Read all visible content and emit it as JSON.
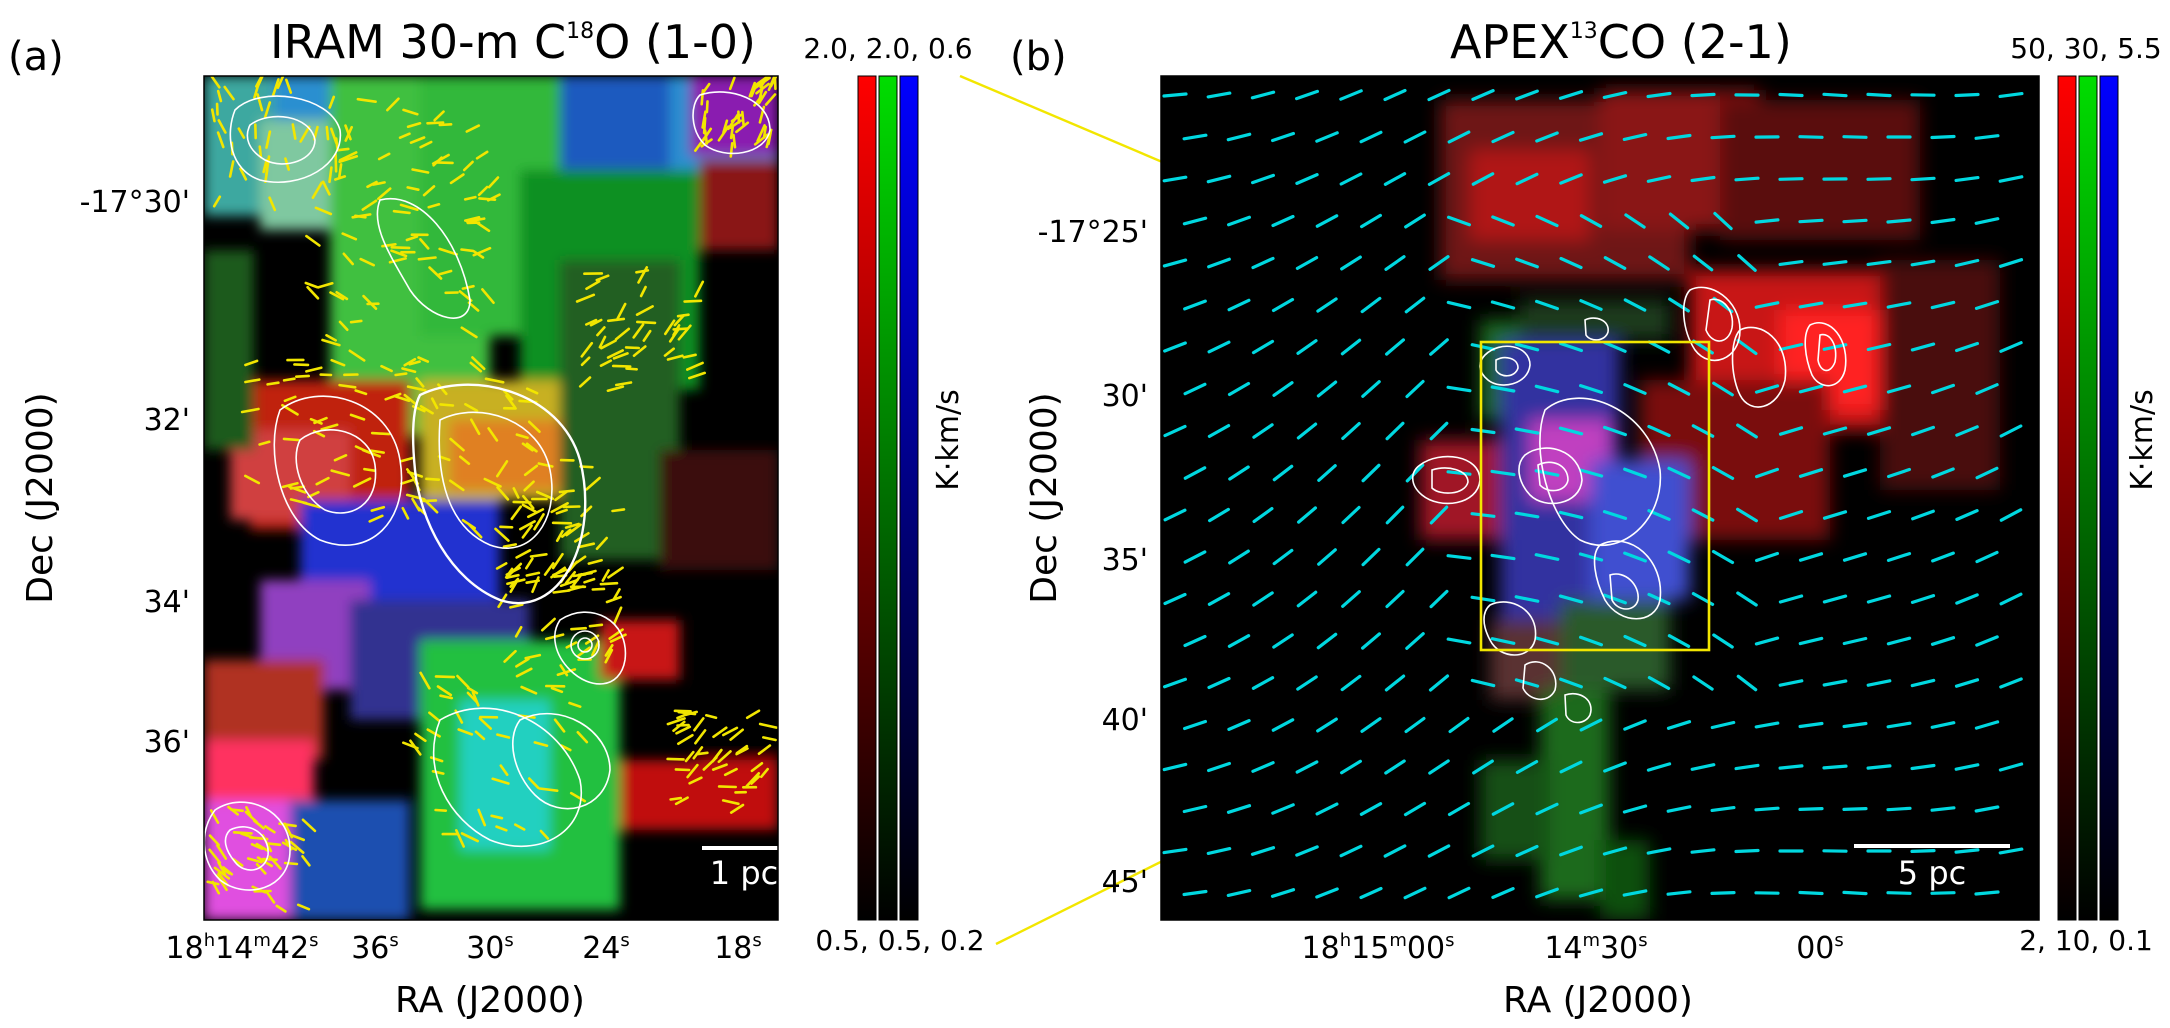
{
  "figure": {
    "panels": [
      {
        "id": "a",
        "label": "(a)",
        "title_main": "IRAM 30-m C",
        "title_sup": "18",
        "title_tail": "O (1-0)",
        "y_axis_label": "Dec (J2000)",
        "x_axis_label": "RA (J2000)",
        "y_ticks": [
          "-17°30'",
          "32'",
          "34'",
          "36'"
        ],
        "x_tick_first": {
          "hours": "18",
          "h": "h",
          "minutes": "14",
          "m": "m",
          "seconds": "42",
          "s": "s"
        },
        "x_ticks": [
          {
            "value": "36",
            "unit": "s"
          },
          {
            "value": "30",
            "unit": "s"
          },
          {
            "value": "24",
            "unit": "s"
          },
          {
            "value": "18",
            "unit": "s"
          }
        ],
        "scale_bar": "1 pc",
        "colorbar": {
          "top": "2.0, 2.0, 0.6",
          "bottom": "0.5, 0.5, 0.2",
          "unit": "K·km/s"
        }
      },
      {
        "id": "b",
        "label": "(b)",
        "title_main": "APEX",
        "title_sup": "13",
        "title_tail": "CO (2-1)",
        "y_axis_label": "Dec (J2000)",
        "x_axis_label": "RA (J2000)",
        "y_ticks": [
          "-17°25'",
          "30'",
          "35'",
          "40'",
          "45'"
        ],
        "x_tick_first": {
          "hours": "18",
          "h": "h",
          "minutes": "15",
          "m": "m",
          "seconds": "00",
          "s": "s"
        },
        "x_ticks": [
          {
            "value": "14",
            "unit": "m",
            "value2": "30",
            "unit2": "s"
          },
          {
            "value": "00",
            "unit": "s"
          }
        ],
        "scale_bar": "5 pc",
        "colorbar": {
          "top": "50, 30, 5.5",
          "bottom": "2, 10, 0.1",
          "unit": "K·km/s"
        }
      }
    ],
    "colors": {
      "polarization_a": "#f2e600",
      "polarization_b": "#00d8e0",
      "contours": "#ffffff",
      "zoom_box": "#f2e600"
    }
  }
}
